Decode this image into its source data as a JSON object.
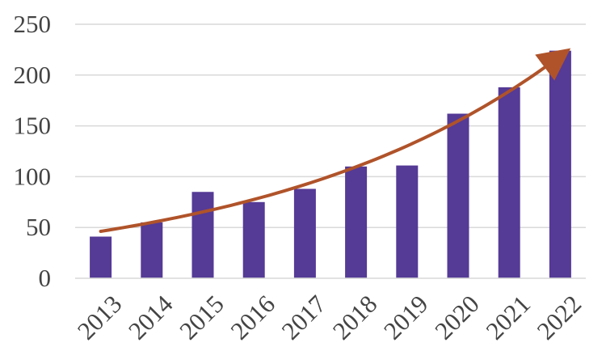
{
  "chart_data": {
    "type": "bar",
    "title": "",
    "xlabel": "",
    "ylabel": "",
    "categories": [
      "2013",
      "2014",
      "2015",
      "2016",
      "2017",
      "2018",
      "2019",
      "2020",
      "2021",
      "2022"
    ],
    "values": [
      41,
      55,
      85,
      75,
      88,
      110,
      111,
      162,
      188,
      224
    ],
    "ylim": [
      0,
      250
    ],
    "yticks": [
      "0",
      "50",
      "100",
      "150",
      "200",
      "250"
    ],
    "grid": true,
    "legend": "none",
    "bar_color": "#553a96",
    "trend": {
      "type": "exponential",
      "color": "#b0532a",
      "arrow": true
    }
  }
}
